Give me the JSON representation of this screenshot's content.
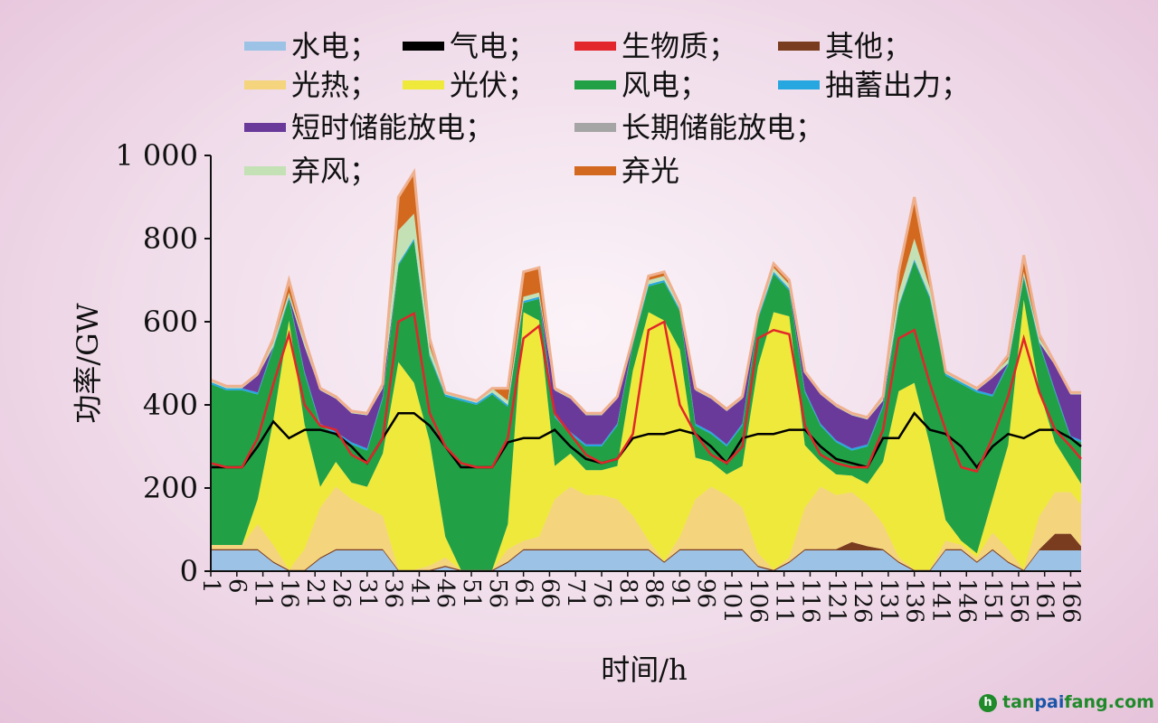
{
  "chart_data": {
    "type": "area",
    "title": "",
    "xlabel": "时间/h",
    "ylabel": "功率/GW",
    "xlim": [
      1,
      168
    ],
    "ylim": [
      0,
      1000
    ],
    "yticks": [
      0,
      200,
      400,
      600,
      800,
      1000
    ],
    "ytick_labels": [
      "0",
      "200",
      "400",
      "600",
      "800",
      "1 000"
    ],
    "xticks": [
      1,
      6,
      11,
      16,
      21,
      26,
      31,
      36,
      41,
      46,
      51,
      56,
      61,
      66,
      71,
      76,
      81,
      86,
      91,
      96,
      101,
      106,
      111,
      116,
      121,
      126,
      131,
      136,
      141,
      146,
      151,
      156,
      161,
      166
    ],
    "legend_placement": "top",
    "x": [
      1,
      4,
      7,
      10,
      13,
      16,
      19,
      22,
      25,
      28,
      31,
      34,
      37,
      40,
      43,
      46,
      49,
      52,
      55,
      58,
      61,
      64,
      67,
      70,
      73,
      76,
      79,
      82,
      85,
      88,
      91,
      94,
      97,
      100,
      103,
      106,
      109,
      112,
      115,
      118,
      121,
      124,
      127,
      130,
      133,
      136,
      139,
      142,
      145,
      148,
      151,
      154,
      157,
      160,
      163,
      166,
      168
    ],
    "stacked_series": [
      {
        "name": "水电；",
        "color": "#9cc3e5",
        "values": [
          50,
          50,
          50,
          50,
          20,
          0,
          0,
          30,
          50,
          50,
          50,
          50,
          0,
          0,
          0,
          10,
          0,
          0,
          0,
          20,
          50,
          50,
          50,
          50,
          50,
          50,
          50,
          50,
          50,
          20,
          50,
          50,
          50,
          50,
          50,
          10,
          0,
          20,
          50,
          50,
          50,
          50,
          50,
          50,
          20,
          0,
          0,
          50,
          50,
          20,
          50,
          20,
          0,
          50,
          50,
          50,
          50
        ]
      },
      {
        "name": "其他；",
        "color": "#7a3c1e",
        "values": [
          3,
          3,
          3,
          3,
          3,
          3,
          3,
          3,
          3,
          3,
          3,
          3,
          3,
          3,
          3,
          3,
          3,
          3,
          3,
          3,
          3,
          3,
          3,
          3,
          3,
          3,
          3,
          3,
          3,
          3,
          3,
          3,
          3,
          3,
          3,
          3,
          3,
          3,
          3,
          3,
          3,
          20,
          10,
          3,
          3,
          3,
          3,
          3,
          3,
          3,
          3,
          3,
          3,
          3,
          40,
          40,
          10
        ]
      },
      {
        "name": "光热；",
        "color": "#f4d47c",
        "values": [
          10,
          10,
          10,
          60,
          40,
          0,
          50,
          120,
          150,
          120,
          100,
          80,
          0,
          0,
          10,
          20,
          0,
          0,
          0,
          30,
          20,
          30,
          120,
          150,
          130,
          130,
          120,
          80,
          20,
          0,
          30,
          120,
          150,
          130,
          100,
          30,
          0,
          10,
          100,
          150,
          130,
          120,
          100,
          60,
          10,
          0,
          0,
          20,
          10,
          10,
          40,
          30,
          0,
          80,
          100,
          100,
          100
        ]
      },
      {
        "name": "光伏；",
        "color": "#eee93a",
        "values": [
          0,
          0,
          0,
          60,
          300,
          600,
          300,
          50,
          60,
          40,
          50,
          150,
          500,
          450,
          300,
          50,
          0,
          0,
          0,
          60,
          550,
          520,
          80,
          80,
          60,
          60,
          80,
          350,
          550,
          580,
          450,
          100,
          60,
          50,
          100,
          450,
          620,
          580,
          150,
          60,
          50,
          40,
          50,
          150,
          400,
          450,
          300,
          50,
          10,
          10,
          80,
          250,
          650,
          300,
          120,
          60,
          50
        ]
      },
      {
        "name": "风电；",
        "color": "#21a046",
        "values": [
          387,
          372,
          372,
          252,
          172,
          52,
          122,
          147,
          67,
          92,
          87,
          132,
          232,
          342,
          202,
          337,
          407,
          397,
          422,
          282,
          22,
          52,
          117,
          47,
          57,
          57,
          97,
          62,
          62,
          92,
          92,
          77,
          67,
          67,
          97,
          112,
          92,
          62,
          127,
          87,
          77,
          60,
          90,
          132,
          202,
          292,
          352,
          347,
          377,
          387,
          247,
          192,
          52,
          112,
          120,
          70,
          100
        ]
      },
      {
        "name": "抽蓄出力；",
        "color": "#27a7e0",
        "values": [
          5,
          5,
          5,
          5,
          5,
          5,
          5,
          5,
          5,
          5,
          5,
          5,
          5,
          5,
          5,
          5,
          5,
          5,
          5,
          5,
          5,
          5,
          5,
          5,
          5,
          5,
          5,
          5,
          5,
          5,
          5,
          5,
          5,
          5,
          5,
          5,
          5,
          5,
          5,
          5,
          5,
          5,
          5,
          5,
          5,
          5,
          5,
          5,
          5,
          5,
          5,
          5,
          5,
          5,
          5,
          5,
          5
        ]
      },
      {
        "name": "短时储能放电；",
        "color": "#6a3a9b",
        "values": [
          0,
          0,
          0,
          40,
          0,
          0,
          60,
          80,
          80,
          70,
          80,
          20,
          0,
          0,
          0,
          0,
          0,
          0,
          0,
          0,
          0,
          0,
          60,
          80,
          70,
          70,
          60,
          0,
          0,
          0,
          0,
          80,
          80,
          80,
          60,
          0,
          0,
          0,
          40,
          70,
          80,
          80,
          60,
          10,
          0,
          0,
          0,
          0,
          0,
          0,
          40,
          0,
          0,
          0,
          60,
          100,
          110
        ]
      },
      {
        "name": "长期储能放电；",
        "color": "#a5a5a5",
        "values": [
          0,
          0,
          0,
          0,
          0,
          0,
          0,
          0,
          0,
          0,
          0,
          0,
          0,
          0,
          0,
          0,
          0,
          0,
          0,
          0,
          0,
          0,
          0,
          0,
          0,
          0,
          0,
          0,
          0,
          0,
          0,
          0,
          0,
          0,
          0,
          0,
          0,
          0,
          0,
          0,
          0,
          0,
          0,
          0,
          0,
          0,
          0,
          0,
          0,
          0,
          0,
          0,
          0,
          0,
          0,
          0,
          0
        ]
      },
      {
        "name": "弃风；",
        "color": "#c3e1b5",
        "values": [
          5,
          5,
          5,
          5,
          10,
          10,
          10,
          5,
          5,
          5,
          5,
          10,
          80,
          60,
          20,
          5,
          5,
          5,
          10,
          10,
          10,
          10,
          5,
          5,
          5,
          5,
          5,
          10,
          10,
          10,
          10,
          5,
          5,
          5,
          5,
          10,
          10,
          10,
          5,
          5,
          5,
          5,
          5,
          10,
          30,
          50,
          20,
          5,
          5,
          5,
          5,
          10,
          10,
          10,
          5,
          5,
          5
        ]
      },
      {
        "name": "弃光",
        "color": "#d2691f",
        "values": [
          0,
          0,
          0,
          0,
          10,
          30,
          10,
          0,
          0,
          0,
          0,
          0,
          80,
          100,
          20,
          0,
          0,
          0,
          0,
          30,
          60,
          60,
          0,
          0,
          0,
          0,
          0,
          0,
          10,
          10,
          0,
          0,
          0,
          0,
          0,
          0,
          10,
          10,
          0,
          0,
          0,
          0,
          0,
          0,
          50,
          100,
          20,
          0,
          0,
          0,
          0,
          10,
          40,
          10,
          0,
          0,
          0
        ]
      }
    ],
    "line_series": [
      {
        "name": "气电；",
        "color": "#000000",
        "values": [
          250,
          250,
          250,
          300,
          360,
          320,
          340,
          340,
          330,
          300,
          260,
          320,
          380,
          380,
          350,
          300,
          250,
          250,
          250,
          310,
          320,
          320,
          340,
          300,
          270,
          260,
          270,
          320,
          330,
          330,
          340,
          330,
          300,
          260,
          320,
          330,
          330,
          340,
          340,
          300,
          270,
          260,
          250,
          320,
          320,
          380,
          340,
          330,
          300,
          250,
          300,
          330,
          320,
          340,
          340,
          320,
          300
        ]
      },
      {
        "name": "生物质；",
        "color": "#e2262b",
        "values": [
          260,
          250,
          250,
          320,
          450,
          570,
          400,
          350,
          340,
          280,
          260,
          320,
          600,
          620,
          380,
          300,
          260,
          250,
          250,
          320,
          560,
          590,
          380,
          330,
          280,
          260,
          270,
          330,
          580,
          600,
          400,
          330,
          280,
          260,
          300,
          560,
          580,
          570,
          350,
          280,
          260,
          250,
          250,
          340,
          560,
          580,
          450,
          340,
          250,
          240,
          320,
          420,
          560,
          430,
          340,
          300,
          270
        ]
      }
    ],
    "legend_order": [
      "水电；",
      "气电；",
      "生物质；",
      "其他；",
      "光热；",
      "光伏；",
      "风电；",
      "抽蓄出力；",
      "短时储能放电；",
      "长期储能放电；",
      "弃风；",
      "弃光"
    ]
  },
  "watermark": {
    "logo": "h",
    "prefix": "tan",
    "middle": "pai",
    "suffix": "fang.com"
  }
}
